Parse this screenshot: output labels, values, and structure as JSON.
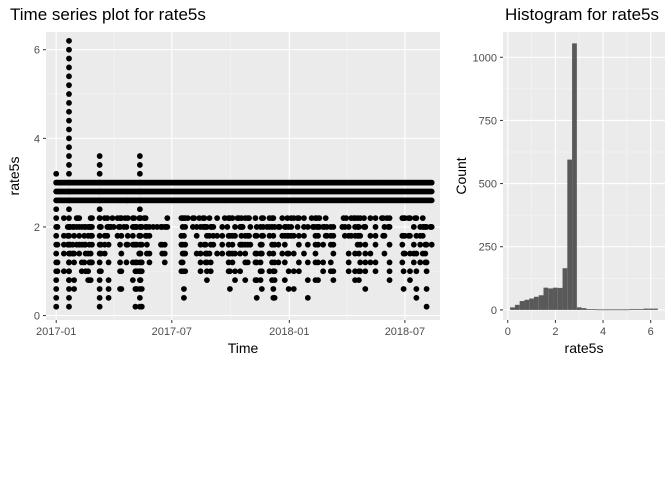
{
  "chart_data": [
    {
      "type": "scatter",
      "title": "Time series plot for rate5s",
      "xlabel": "Time",
      "ylabel": "rate5s",
      "x_type": "date",
      "xlim": [
        "2016-12-16",
        "2018-08-25"
      ],
      "ylim": [
        -0.1,
        6.4
      ],
      "x_ticks": [
        {
          "value": "2017-01-01",
          "label": "2017-01"
        },
        {
          "value": "2017-07-01",
          "label": "2017-07"
        },
        {
          "value": "2018-01-01",
          "label": "2018-01"
        },
        {
          "value": "2018-07-01",
          "label": "2018-07"
        }
      ],
      "y_ticks": [
        0,
        2,
        4,
        6
      ],
      "grid": true,
      "point_color": "#000000",
      "background_color": "#ebebeb",
      "date_range": [
        "2017-01-01",
        "2018-08-12"
      ],
      "band_values": [
        2.6,
        2.8,
        3.0
      ],
      "spikes": [
        {
          "date": "2017-01-21",
          "max": 6.2
        },
        {
          "date": "2017-03-10",
          "max": 3.6
        },
        {
          "date": "2017-05-12",
          "max": 3.6
        },
        {
          "date": "2017-01-01",
          "max": 3.2
        }
      ],
      "series": [
        {
          "values_summary": "daily observations between 0.2 and 3.0, dense band 2.6–3.0, sparse extremes up to 6.2"
        }
      ]
    },
    {
      "type": "histogram",
      "title": "Histogram for rate5s",
      "xlabel": "rate5s",
      "ylabel": "Count",
      "xlim": [
        -0.2,
        6.6
      ],
      "ylim": [
        -40,
        1100
      ],
      "x_ticks": [
        0,
        2,
        4,
        6
      ],
      "y_ticks": [
        0,
        250,
        500,
        750,
        1000
      ],
      "grid": true,
      "bar_color": "#595959",
      "background_color": "#ebebeb",
      "bin_width": 0.2,
      "bins": [
        {
          "x": 0.2,
          "count": 10
        },
        {
          "x": 0.4,
          "count": 20
        },
        {
          "x": 0.6,
          "count": 35
        },
        {
          "x": 0.8,
          "count": 40
        },
        {
          "x": 1.0,
          "count": 45
        },
        {
          "x": 1.2,
          "count": 52
        },
        {
          "x": 1.4,
          "count": 58
        },
        {
          "x": 1.6,
          "count": 88
        },
        {
          "x": 1.8,
          "count": 85
        },
        {
          "x": 2.0,
          "count": 88
        },
        {
          "x": 2.2,
          "count": 87
        },
        {
          "x": 2.4,
          "count": 165
        },
        {
          "x": 2.6,
          "count": 595
        },
        {
          "x": 2.8,
          "count": 1055
        },
        {
          "x": 3.0,
          "count": 10
        },
        {
          "x": 3.2,
          "count": 7
        },
        {
          "x": 3.4,
          "count": 3
        },
        {
          "x": 3.6,
          "count": 3
        },
        {
          "x": 3.8,
          "count": 2
        },
        {
          "x": 4.0,
          "count": 2
        },
        {
          "x": 4.2,
          "count": 2
        },
        {
          "x": 4.4,
          "count": 2
        },
        {
          "x": 4.6,
          "count": 2
        },
        {
          "x": 4.8,
          "count": 2
        },
        {
          "x": 5.0,
          "count": 2
        },
        {
          "x": 5.2,
          "count": 3
        },
        {
          "x": 5.4,
          "count": 3
        },
        {
          "x": 5.6,
          "count": 3
        },
        {
          "x": 5.8,
          "count": 5
        },
        {
          "x": 6.0,
          "count": 5
        },
        {
          "x": 6.2,
          "count": 5
        }
      ]
    }
  ]
}
